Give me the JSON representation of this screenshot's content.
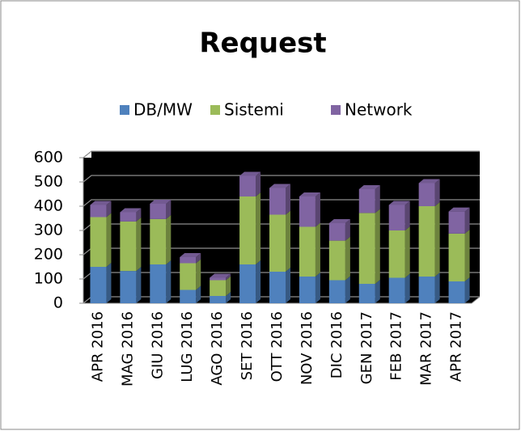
{
  "chart_data": {
    "type": "bar",
    "stacked": true,
    "title": "Request",
    "categories": [
      "APR 2016",
      "MAG 2016",
      "GIU 2016",
      "LUG 2016",
      "AGO 2016",
      "SET 2016",
      "OTT 2016",
      "NOV 2016",
      "DIC 2016",
      "GEN 2017",
      "FEB 2017",
      "MAR 2017",
      "APR 2017"
    ],
    "series": [
      {
        "name": "DB/MW",
        "color": "#4f81bd",
        "values": [
          150,
          133,
          160,
          55,
          30,
          160,
          130,
          110,
          95,
          80,
          105,
          110,
          90
        ]
      },
      {
        "name": "Sistemi",
        "color": "#9bbb59",
        "values": [
          205,
          204,
          187,
          110,
          65,
          280,
          235,
          205,
          163,
          292,
          195,
          290,
          197
        ]
      },
      {
        "name": "Network",
        "color": "#8064a2",
        "values": [
          50,
          38,
          63,
          25,
          10,
          85,
          110,
          125,
          72,
          98,
          105,
          95,
          91
        ]
      }
    ],
    "ylim": [
      0,
      600
    ],
    "yticks": [
      0,
      100,
      200,
      300,
      400,
      500,
      600
    ],
    "grid": true,
    "legend": "top"
  }
}
